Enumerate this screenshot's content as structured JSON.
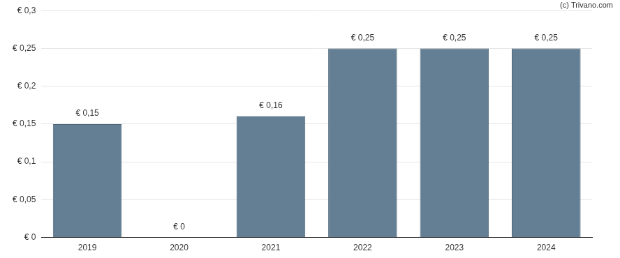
{
  "chart_data": {
    "type": "bar",
    "annotations": [
      "(c) Trivano.com"
    ],
    "categories": [
      "2019",
      "2020",
      "2021",
      "2022",
      "2023",
      "2024"
    ],
    "values": [
      0.15,
      0,
      0.16,
      0.25,
      0.25,
      0.25
    ],
    "value_labels": [
      "€ 0,15",
      "€ 0",
      "€ 0,16",
      "€ 0,25",
      "€ 0,25",
      "€ 0,25"
    ],
    "data_labels": true,
    "color": "#647f94",
    "ylim": [
      0,
      0.3
    ],
    "yticks": [
      {
        "value": 0,
        "label": "€ 0"
      },
      {
        "value": 0.05,
        "label": "€ 0,05"
      },
      {
        "value": 0.1,
        "label": "€ 0,1"
      },
      {
        "value": 0.15,
        "label": "€ 0,15"
      },
      {
        "value": 0.2,
        "label": "€ 0,2"
      },
      {
        "value": 0.25,
        "label": "€ 0,25"
      },
      {
        "value": 0.3,
        "label": "€ 0,3"
      }
    ],
    "grid": true
  }
}
